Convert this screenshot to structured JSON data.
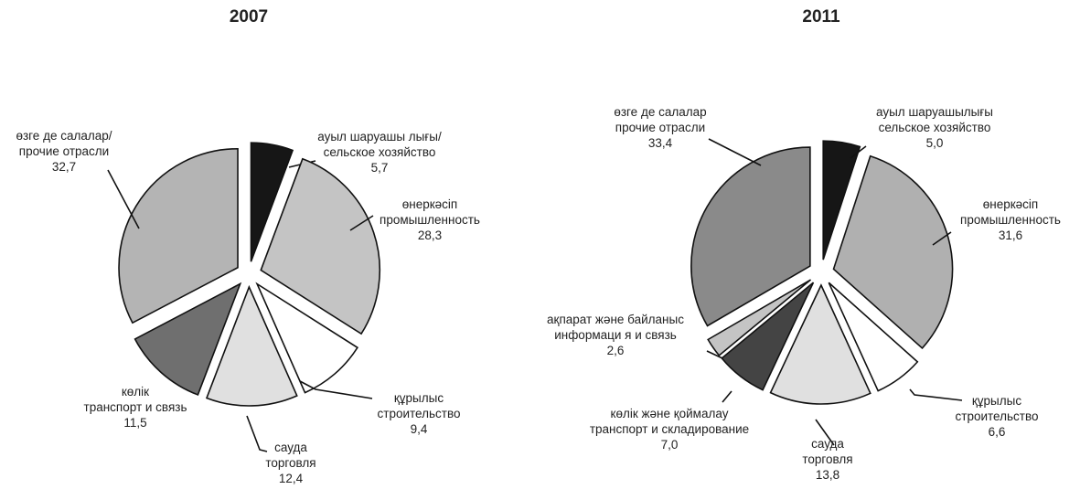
{
  "chart_data": [
    {
      "type": "pie",
      "title": "2007",
      "slices": [
        {
          "label_lines": [
            "ауыл шаруашы лығы/",
            "сельское хозяйство"
          ],
          "value": 5.7,
          "value_text": "5,7",
          "color": "#161616"
        },
        {
          "label_lines": [
            "өнеркәсіп",
            "промышленность"
          ],
          "value": 28.3,
          "value_text": "28,3",
          "color": "#c4c4c4"
        },
        {
          "label_lines": [
            "құрылыс",
            "строительство"
          ],
          "value": 9.4,
          "value_text": "9,4",
          "color": "#ffffff"
        },
        {
          "label_lines": [
            "сауда",
            "торговля"
          ],
          "value": 12.4,
          "value_text": "12,4",
          "color": "#e0e0e0"
        },
        {
          "label_lines": [
            "көлік",
            "транспорт и связь"
          ],
          "value": 11.5,
          "value_text": "11,5",
          "color": "#6f6f6f"
        },
        {
          "label_lines": [
            "өзге де салалар/",
            "прочие отрасли"
          ],
          "value": 32.7,
          "value_text": "32,7",
          "color": "#b4b4b4"
        }
      ]
    },
    {
      "type": "pie",
      "title": "2011",
      "slices": [
        {
          "label_lines": [
            "ауыл шаруашылығы",
            "сельское хозяйство"
          ],
          "value": 5.0,
          "value_text": "5,0",
          "color": "#161616"
        },
        {
          "label_lines": [
            "өнеркәсіп",
            "промышленность"
          ],
          "value": 31.6,
          "value_text": "31,6",
          "color": "#b0b0b0"
        },
        {
          "label_lines": [
            "құрылыс",
            "строительство"
          ],
          "value": 6.6,
          "value_text": "6,6",
          "color": "#ffffff"
        },
        {
          "label_lines": [
            "сауда",
            "торговля"
          ],
          "value": 13.8,
          "value_text": "13,8",
          "color": "#e0e0e0"
        },
        {
          "label_lines": [
            "көлік және қоймалау",
            "транспорт и складирование"
          ],
          "value": 7.0,
          "value_text": "7,0",
          "color": "#444444"
        },
        {
          "label_lines": [
            "ақпарат және байланыс",
            "информаци я и связь"
          ],
          "value": 2.6,
          "value_text": "2,6",
          "color": "#c4c4c4"
        },
        {
          "label_lines": [
            "өзге де салалар",
            "прочие отрасли"
          ],
          "value": 33.4,
          "value_text": "33,4",
          "color": "#8a8a8a"
        }
      ]
    }
  ]
}
